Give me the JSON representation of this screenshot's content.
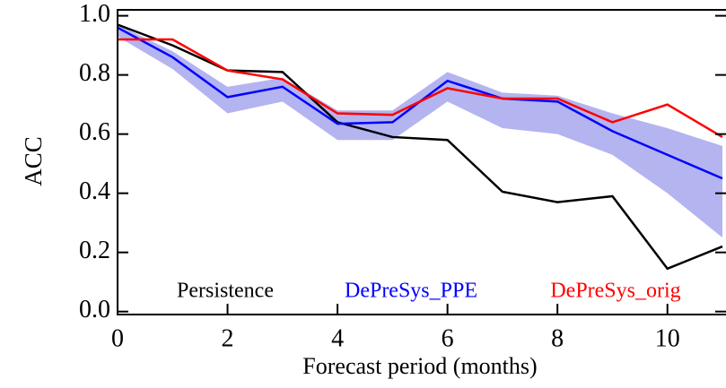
{
  "chart_data": {
    "type": "line",
    "xlabel": "Forecast period (months)",
    "ylabel": "ACC",
    "x": [
      0,
      1,
      2,
      3,
      4,
      5,
      6,
      7,
      8,
      9,
      10,
      11
    ],
    "series": [
      {
        "name": "Persistence",
        "color": "#000000",
        "values": [
          0.97,
          0.9,
          0.815,
          0.81,
          0.64,
          0.59,
          0.58,
          0.405,
          0.37,
          0.39,
          0.145,
          0.22
        ]
      },
      {
        "name": "DePreSys_PPE",
        "color": "#0000ff",
        "values": [
          0.96,
          0.86,
          0.725,
          0.76,
          0.635,
          0.64,
          0.78,
          0.72,
          0.71,
          0.61,
          0.53,
          0.45
        ]
      },
      {
        "name": "DePreSys_orig",
        "color": "#ff0000",
        "values": [
          0.92,
          0.92,
          0.815,
          0.785,
          0.67,
          0.665,
          0.755,
          0.72,
          0.72,
          0.64,
          0.7,
          0.59
        ]
      }
    ],
    "band": {
      "color": "#b4b4f0",
      "upper": [
        0.97,
        0.88,
        0.76,
        0.79,
        0.68,
        0.68,
        0.81,
        0.74,
        0.73,
        0.67,
        0.62,
        0.56
      ],
      "lower": [
        0.93,
        0.82,
        0.67,
        0.71,
        0.58,
        0.58,
        0.71,
        0.62,
        0.6,
        0.53,
        0.4,
        0.25
      ]
    },
    "xlim": [
      0,
      11
    ],
    "xticks": [
      0,
      2,
      4,
      6,
      8,
      10
    ],
    "ylim": [
      -0.01,
      1.02
    ],
    "yticks": [
      {
        "value": 0,
        "label": "0.0"
      },
      0.2,
      0.4,
      0.6,
      0.8,
      {
        "value": 1,
        "label": "1.0"
      }
    ]
  }
}
